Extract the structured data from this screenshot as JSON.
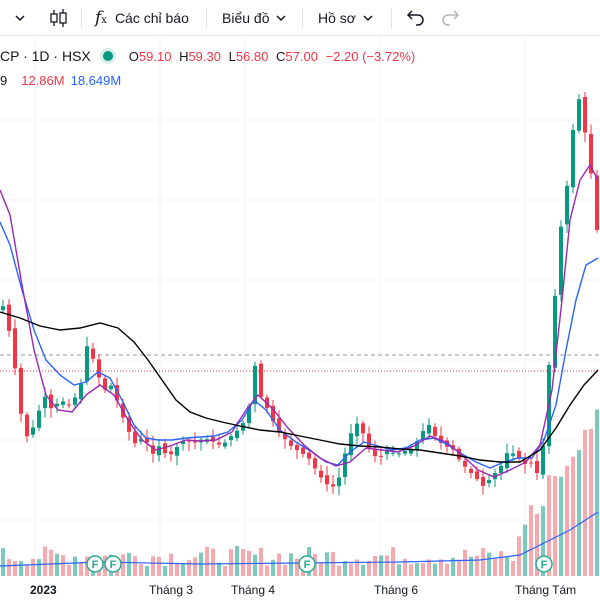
{
  "toolbar": {
    "indicators_label": "Các chỉ báo",
    "chart_type_label": "Biểu đồ",
    "profile_label": "Hồ sơ"
  },
  "legend": {
    "symbol": "CP · 1D · HSX",
    "status_color": "#089981",
    "open_key": "O",
    "open": "59.10",
    "high_key": "H",
    "high": "59.30",
    "low_key": "L",
    "low": "56.80",
    "close_key": "C",
    "close": "57.00",
    "change": "−2.20 (−3.72%)",
    "volume_prefix": "9",
    "volume": "12.86M",
    "volume_ma": "18.649M"
  },
  "colors": {
    "up": "#089981",
    "down": "#f23645",
    "ma_fast": "#2962ff",
    "ma_mid": "#9c27b0",
    "ma_slow": "#000000",
    "vol_up": "#7cc9bd",
    "vol_down": "#f7a9b0",
    "vol_ma": "#2962ff"
  },
  "x_axis": {
    "labels": [
      "2023",
      "Tháng 3",
      "Tháng 4",
      "Tháng 6",
      "Tháng Tám"
    ]
  },
  "dividend_marker_label": "F",
  "chart_data": {
    "type": "candlestick",
    "title": "",
    "price_lines": {
      "dashed_gray": true,
      "dotted_red": true
    },
    "grid": true,
    "candle_count": 100
  }
}
